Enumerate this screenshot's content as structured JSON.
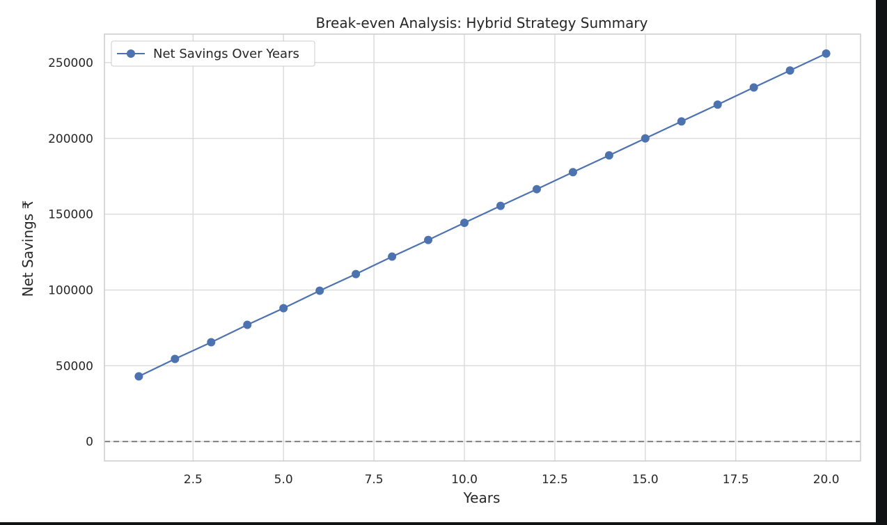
{
  "chart_data": {
    "type": "line",
    "title": "Break-even Analysis: Hybrid Strategy Summary",
    "xlabel": "Years",
    "ylabel": "Net Savings ₹",
    "xlim": [
      0.05,
      20.95
    ],
    "ylim": [
      -12800,
      268800
    ],
    "x_ticks": [
      2.5,
      5.0,
      7.5,
      10.0,
      12.5,
      15.0,
      17.5,
      20.0
    ],
    "x_tick_labels": [
      "2.5",
      "5.0",
      "7.5",
      "10.0",
      "12.5",
      "15.0",
      "17.5",
      "20.0"
    ],
    "y_ticks": [
      0,
      50000,
      100000,
      150000,
      200000,
      250000
    ],
    "y_tick_labels": [
      "0",
      "50000",
      "100000",
      "150000",
      "200000",
      "250000"
    ],
    "grid": true,
    "legend_position": "upper-left",
    "reference_line": {
      "y": 0,
      "style": "dashed",
      "color": "#808080"
    },
    "series": [
      {
        "name": "Net Savings Over Years",
        "color": "#4c72b0",
        "marker": "circle",
        "x": [
          1,
          2,
          3,
          4,
          5,
          6,
          7,
          8,
          9,
          10,
          11,
          12,
          13,
          14,
          15,
          16,
          17,
          18,
          19,
          20
        ],
        "y": [
          43000,
          54500,
          65500,
          77000,
          88000,
          99500,
          110500,
          122000,
          133000,
          144300,
          155500,
          166500,
          177700,
          188800,
          200000,
          211200,
          222300,
          233600,
          244800,
          256000
        ]
      }
    ]
  }
}
